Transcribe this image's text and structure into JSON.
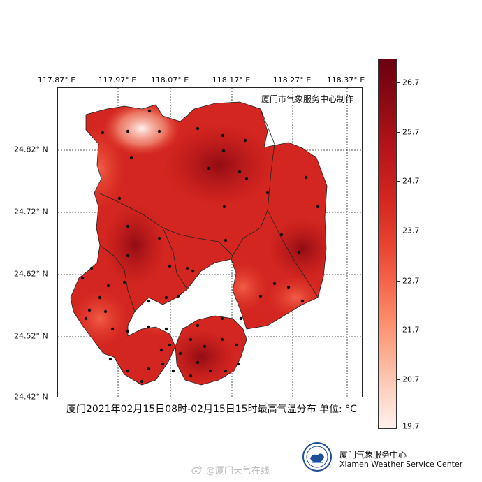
{
  "map": {
    "lon_labels": [
      "117.87° E",
      "117.97° E",
      "118.07° E",
      "118.17° E",
      "118.27° E",
      "118.37° E"
    ],
    "lat_labels": [
      "24.82° N",
      "24.72° N",
      "24.62° N",
      "24.52° N",
      "24.42° N"
    ],
    "producer": "厦门市气象服务中心制作",
    "caption": "厦门2021年02月15日08时-02月15日15时最高气温分布  单位: °C",
    "variable": "最高气温",
    "unit": "°C",
    "colormap": {
      "low_color": "#fff1ec",
      "mid_color": "#e7422f",
      "high_color": "#6a0010"
    }
  },
  "colorbar": {
    "ticks": [
      "26.7",
      "25.7",
      "24.7",
      "23.7",
      "22.7",
      "21.7",
      "20.7",
      "19.7"
    ]
  },
  "footer": {
    "org_zh": "厦门气象服务中心",
    "org_en": "Xiamen Weather Service Center",
    "watermark": "@厦门天气在线"
  }
}
